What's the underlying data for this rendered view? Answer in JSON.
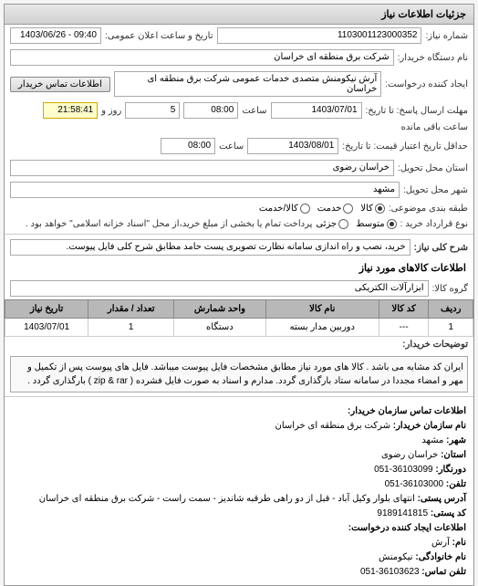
{
  "panel_title": "جزئیات اطلاعات نیاز",
  "header": {
    "request_number_label": "شماره نیاز:",
    "request_number": "1103001123000352",
    "datetime_label": "تاریخ و ساعت اعلان عمومی:",
    "datetime": "09:40 - 1403/06/26",
    "buyer_org_label": "نام دستگاه خریدار:",
    "buyer_org": "شرکت برق منطقه ای خراسان",
    "creator_label": "ایجاد کننده درخواست:",
    "creator": "آرش نیکومنش متصدی خدمات عمومی شرکت برق منطقه ای خراسان",
    "contact_btn": "اطلاعات تماس خریدار"
  },
  "deadlines": {
    "response_deadline_label": "مهلت ارسال پاسخ: تا تاریخ:",
    "response_date": "1403/07/01",
    "response_time_label": "ساعت",
    "response_time": "08:00",
    "days_label": "روز و",
    "days": "5",
    "remaining_label": "ساعت باقی مانده",
    "remaining": "21:58:41",
    "validity_label": "حداقل تاریخ اعتبار قیمت: تا تاریخ:",
    "validity_date": "1403/08/01",
    "validity_time": "08:00"
  },
  "location": {
    "province_label": "استان محل تحویل:",
    "province": "خراسان رضوی",
    "city_label": "شهر محل تحویل:",
    "city": "مشهد"
  },
  "classification": {
    "budget_label": "طبقه بندی موضوعی:",
    "options": [
      "کالا",
      "خدمت",
      "کالا/خدمت"
    ],
    "selected": 0,
    "agreement_type_label": "نوع قرارداد خرید :",
    "agreement_options": [
      "متوسط",
      "جزئی"
    ],
    "agreement_selected": 0,
    "agreement_note": "پرداخت تمام یا بخشی از مبلغ خرید،از محل \"اسناد خزانه اسلامی\" خواهد بود ."
  },
  "need_title": {
    "label": "شرح کلی نیاز:",
    "value": "خرید، نصب و راه اندازی سامانه نظارت تصویری پست حامد مطابق شرح کلی فایل پیوست."
  },
  "goods_section_title": "اطلاعات کالاهای مورد نیاز",
  "goods_group": {
    "label": "گروه کالا:",
    "value": "ابزارآلات الکتریکی"
  },
  "table": {
    "headers": [
      "ردیف",
      "کد کالا",
      "نام کالا",
      "واحد شمارش",
      "تعداد / مقدار",
      "تاریخ نیاز"
    ],
    "rows": [
      [
        "1",
        "---",
        "دوربین مدار بسته",
        "دستگاه",
        "1",
        "1403/07/01"
      ]
    ]
  },
  "description": {
    "label": "توضیحات خریدار:",
    "text": "ایران کد مشابه می باشد . کالا های مورد نیاز مطابق مشخصات فایل پیوست میباشد. فایل های پیوست پس از تکمیل و مهر و امضاء مجددا در سامانه ستاد بارگذاری گردد. مدارم و اسناد به صورت فایل فشرده ( zip & rar ) بارگذاری گردد ."
  },
  "contact": {
    "title": "اطلاعات تماس سازمان خریدار:",
    "org_name_label": "نام سازمان خریدار:",
    "org_name": "شرکت برق منطقه ای خراسان",
    "city_label": "شهر:",
    "city": "مشهد",
    "province_label": "استان:",
    "province": "خراسان رضوی",
    "fax_label": "دورنگار:",
    "fax": "36103099-051",
    "phone_label": "تلفن:",
    "phone": "36103000-051",
    "address_label": "آدرس پستی:",
    "address": "انتهای بلوار وکیل آباد - قبل از دو راهی طرقبه شاندیز - سمت راست - شرکت برق منطقه ای خراسان",
    "postal_label": "کد پستی:",
    "postal": "9189141815",
    "creator_title": "اطلاعات ایجاد کننده درخواست:",
    "name_label": "نام:",
    "name": "آرش",
    "lastname_label": "نام خانوادگی:",
    "lastname": "نیکومنش",
    "contact_phone_label": "تلفن تماس:",
    "contact_phone": "36103623-051"
  }
}
